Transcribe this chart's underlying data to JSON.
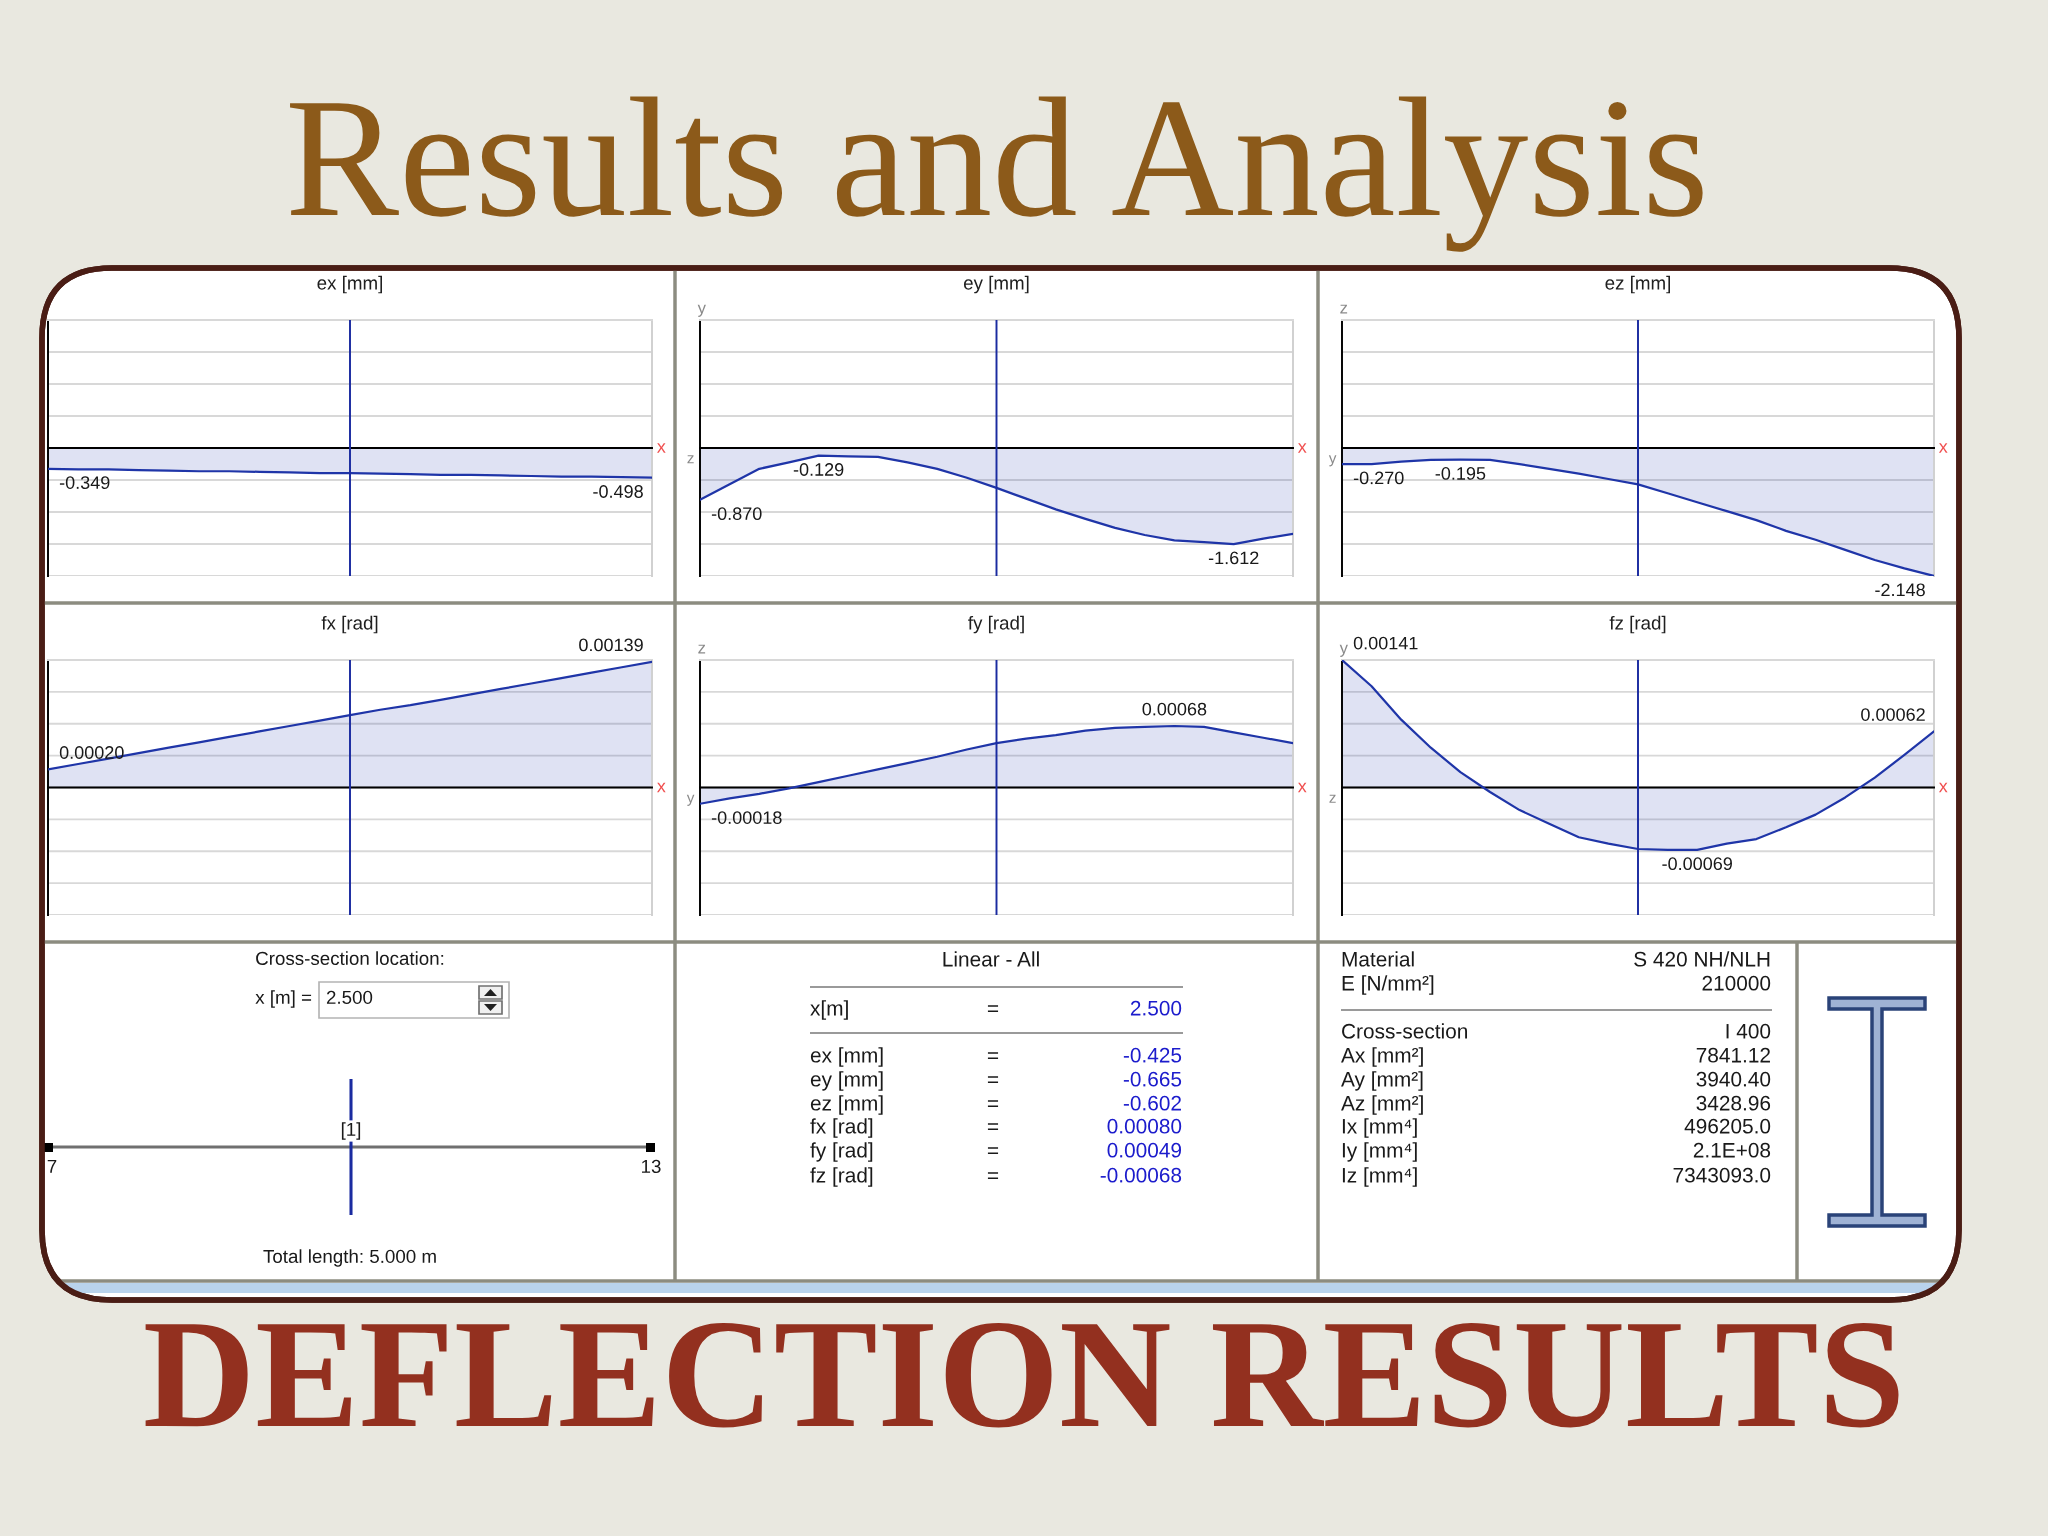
{
  "chart_data": [
    {
      "type": "other",
      "title": "Results and Analysis"
    },
    {
      "type": "area",
      "title": "ex [mm]",
      "xlabel": "x",
      "categories": [
        null,
        null,
        null,
        null,
        null,
        null,
        null,
        null,
        null,
        null,
        null,
        null,
        null,
        null,
        null,
        null,
        null,
        null,
        null,
        null,
        null
      ],
      "series": [
        {
          "color": "#1f35a8",
          "values": [
            -0.349,
            -0.36,
            -0.36,
            -0.37,
            -0.38,
            -0.39,
            -0.39,
            -0.4,
            -0.41,
            -0.42,
            -0.42,
            -0.43,
            -0.44,
            -0.45,
            -0.45,
            -0.46,
            -0.47,
            -0.48,
            -0.48,
            -0.49,
            -0.498
          ],
          "value_labels": [
            "-0.349",
            null,
            null,
            null,
            null,
            null,
            null,
            null,
            null,
            null,
            null,
            null,
            null,
            null,
            null,
            null,
            null,
            null,
            null,
            null,
            "-0.498"
          ]
        }
      ],
      "ylim": [
        -2.148,
        2.148
      ],
      "yticks": [
        {
          "value": -2.148,
          "label": null
        },
        {
          "value": -1.611,
          "label": null
        },
        {
          "value": -1.074,
          "label": null
        },
        {
          "value": -0.537,
          "label": null
        },
        {
          "value": 0,
          "label": null
        },
        {
          "value": 0.537,
          "label": null
        },
        {
          "value": 1.074,
          "label": null
        },
        {
          "value": 1.611,
          "label": null
        },
        {
          "value": 2.148,
          "label": null
        }
      ],
      "grid": "y"
    },
    {
      "type": "area",
      "title": "ey [mm]",
      "xlabel": "x",
      "ylabel": "y",
      "annotations": [
        "z"
      ],
      "categories": [
        null,
        null,
        null,
        null,
        null,
        null,
        null,
        null,
        null,
        null,
        null,
        null,
        null,
        null,
        null,
        null,
        null,
        null,
        null,
        null,
        null
      ],
      "series": [
        {
          "color": "#1f35a8",
          "values": [
            -0.87,
            -0.61,
            -0.35,
            -0.24,
            -0.129,
            -0.14,
            -0.15,
            -0.24,
            -0.35,
            -0.5,
            -0.67,
            -0.85,
            -1.03,
            -1.19,
            -1.34,
            -1.46,
            -1.55,
            -1.58,
            -1.612,
            -1.52,
            -1.44
          ],
          "value_labels": [
            "-0.870",
            null,
            null,
            null,
            "-0.129",
            null,
            null,
            null,
            null,
            null,
            null,
            null,
            null,
            null,
            null,
            null,
            null,
            null,
            "-1.612",
            null,
            null
          ]
        }
      ],
      "ylim": [
        -2.148,
        2.148
      ],
      "yticks": [
        {
          "value": -2.148,
          "label": null
        },
        {
          "value": -1.611,
          "label": null
        },
        {
          "value": -1.074,
          "label": null
        },
        {
          "value": -0.537,
          "label": null
        },
        {
          "value": 0,
          "label": null
        },
        {
          "value": 0.537,
          "label": null
        },
        {
          "value": 1.074,
          "label": null
        },
        {
          "value": 1.611,
          "label": null
        },
        {
          "value": 2.148,
          "label": null
        }
      ],
      "grid": "y"
    },
    {
      "type": "area",
      "title": "ez [mm]",
      "xlabel": "x",
      "ylabel": "z",
      "annotations": [
        "y"
      ],
      "categories": [
        null,
        null,
        null,
        null,
        null,
        null,
        null,
        null,
        null,
        null,
        null,
        null,
        null,
        null,
        null,
        null,
        null,
        null,
        null,
        null,
        null
      ],
      "series": [
        {
          "color": "#1f35a8",
          "values": [
            -0.27,
            -0.27,
            -0.23,
            -0.2,
            -0.195,
            -0.2,
            -0.27,
            -0.35,
            -0.43,
            -0.52,
            -0.61,
            -0.76,
            -0.91,
            -1.06,
            -1.21,
            -1.39,
            -1.54,
            -1.71,
            -1.88,
            -2.02,
            -2.148
          ],
          "value_labels": [
            "-0.270",
            null,
            null,
            null,
            "-0.195",
            null,
            null,
            null,
            null,
            null,
            null,
            null,
            null,
            null,
            null,
            null,
            null,
            null,
            null,
            null,
            "-2.148"
          ]
        }
      ],
      "ylim": [
        -2.148,
        2.148
      ],
      "yticks": [
        {
          "value": -2.148,
          "label": null
        },
        {
          "value": -1.611,
          "label": null
        },
        {
          "value": -1.074,
          "label": null
        },
        {
          "value": -0.537,
          "label": null
        },
        {
          "value": 0,
          "label": null
        },
        {
          "value": 0.537,
          "label": null
        },
        {
          "value": 1.074,
          "label": null
        },
        {
          "value": 1.611,
          "label": null
        },
        {
          "value": 2.148,
          "label": null
        }
      ],
      "grid": "y"
    },
    {
      "type": "area",
      "title": "fx [rad]",
      "xlabel": "x",
      "categories": [
        null,
        null,
        null,
        null,
        null,
        null,
        null,
        null,
        null,
        null,
        null,
        null,
        null,
        null,
        null,
        null,
        null,
        null,
        null,
        null,
        null
      ],
      "series": [
        {
          "color": "#1f35a8",
          "values": [
            0.0002,
            0.00026,
            0.00032,
            0.00038,
            0.00044,
            0.0005,
            0.00056,
            0.00062,
            0.00068,
            0.00074,
            0.0008,
            0.00086,
            0.00091,
            0.00097,
            0.00103,
            0.00109,
            0.00115,
            0.00121,
            0.00127,
            0.00133,
            0.00139
          ],
          "value_labels": [
            "0.00020",
            null,
            null,
            null,
            null,
            null,
            null,
            null,
            null,
            null,
            null,
            null,
            null,
            null,
            null,
            null,
            null,
            null,
            null,
            null,
            "0.00139"
          ]
        }
      ],
      "ylim": [
        -0.00141,
        0.00141
      ],
      "yticks": [
        {
          "value": -0.00141,
          "label": null
        },
        {
          "value": -0.001058,
          "label": null
        },
        {
          "value": -0.000705,
          "label": null
        },
        {
          "value": -0.000353,
          "label": null
        },
        {
          "value": 0,
          "label": null
        },
        {
          "value": 0.000353,
          "label": null
        },
        {
          "value": 0.000705,
          "label": null
        },
        {
          "value": 0.001058,
          "label": null
        },
        {
          "value": 0.00141,
          "label": null
        }
      ],
      "grid": "y"
    },
    {
      "type": "area",
      "title": "fy [rad]",
      "xlabel": "x",
      "ylabel": "z",
      "annotations": [
        "y"
      ],
      "categories": [
        null,
        null,
        null,
        null,
        null,
        null,
        null,
        null,
        null,
        null,
        null,
        null,
        null,
        null,
        null,
        null,
        null,
        null,
        null,
        null,
        null
      ],
      "series": [
        {
          "color": "#1f35a8",
          "values": [
            -0.00018,
            -0.00012,
            -7e-05,
            -1e-05,
            6e-05,
            0.00013,
            0.0002,
            0.00027,
            0.00034,
            0.00042,
            0.00049,
            0.00054,
            0.00058,
            0.00063,
            0.00066,
            0.00067,
            0.00068,
            0.00067,
            0.00061,
            0.00055,
            0.00049
          ],
          "value_labels": [
            "-0.00018",
            null,
            null,
            null,
            null,
            null,
            null,
            null,
            null,
            null,
            null,
            null,
            null,
            null,
            null,
            null,
            "0.00068",
            null,
            null,
            null,
            null
          ]
        }
      ],
      "ylim": [
        -0.00141,
        0.00141
      ],
      "yticks": [
        {
          "value": -0.00141,
          "label": null
        },
        {
          "value": -0.001058,
          "label": null
        },
        {
          "value": -0.000705,
          "label": null
        },
        {
          "value": -0.000353,
          "label": null
        },
        {
          "value": 0,
          "label": null
        },
        {
          "value": 0.000353,
          "label": null
        },
        {
          "value": 0.000705,
          "label": null
        },
        {
          "value": 0.001058,
          "label": null
        },
        {
          "value": 0.00141,
          "label": null
        }
      ],
      "grid": "y"
    },
    {
      "type": "area",
      "title": "fz [rad]",
      "xlabel": "x",
      "ylabel": "y",
      "annotations": [
        "z"
      ],
      "categories": [
        null,
        null,
        null,
        null,
        null,
        null,
        null,
        null,
        null,
        null,
        null,
        null,
        null,
        null,
        null,
        null,
        null,
        null,
        null,
        null,
        null
      ],
      "series": [
        {
          "color": "#1f35a8",
          "values": [
            0.00141,
            0.00112,
            0.00075,
            0.00044,
            0.00017,
            -5e-05,
            -0.00025,
            -0.0004,
            -0.00055,
            -0.00062,
            -0.00068,
            -0.00069,
            -0.00069,
            -0.00062,
            -0.00057,
            -0.00044,
            -0.0003,
            -0.00011,
            0.00011,
            0.00036,
            0.00062
          ],
          "value_labels": [
            "0.00141",
            null,
            null,
            null,
            null,
            null,
            null,
            null,
            null,
            null,
            null,
            null,
            "-0.00069",
            null,
            null,
            null,
            null,
            null,
            null,
            null,
            "0.00062"
          ]
        }
      ],
      "ylim": [
        -0.00141,
        0.00141
      ],
      "yticks": [
        {
          "value": -0.00141,
          "label": null
        },
        {
          "value": -0.001058,
          "label": null
        },
        {
          "value": -0.000705,
          "label": null
        },
        {
          "value": -0.000353,
          "label": null
        },
        {
          "value": 0,
          "label": null
        },
        {
          "value": 0.000353,
          "label": null
        },
        {
          "value": 0.000705,
          "label": null
        },
        {
          "value": 0.001058,
          "label": null
        },
        {
          "value": 0.00141,
          "label": null
        }
      ],
      "grid": "y"
    },
    {
      "type": "other",
      "title": "Cross-section location:",
      "annotations": [
        "x [m] =",
        "2.500",
        "[1]",
        "7",
        "13",
        "Total length: 5.000 m"
      ]
    },
    {
      "type": "other",
      "title": "Linear - All",
      "annotations": [
        "x[m]",
        "=",
        "2.500",
        "ex [mm]",
        "=",
        "-0.425",
        "ey [mm]",
        "=",
        "-0.665",
        "ez [mm]",
        "=",
        "-0.602",
        "fx [rad]",
        "=",
        "0.00080",
        "fy [rad]",
        "=",
        "0.00049",
        "fz [rad]",
        "=",
        "-0.00068"
      ]
    },
    {
      "type": "other",
      "annotations": [
        "Material",
        "S 420 NH/NLH",
        "E [N/mm²]",
        "210000",
        "Cross-section",
        "I 400",
        "Ax [mm²]",
        "7841.12",
        "Ay [mm²]",
        "3940.40",
        "Az [mm²]",
        "3428.96",
        "Ix [mm⁴]",
        "496205.0",
        "Iy [mm⁴]",
        "2.1E+08",
        "Iz [mm⁴]",
        "7343093.0"
      ]
    },
    {
      "type": "other",
      "title": "DEFLECTION RESULTS"
    }
  ]
}
